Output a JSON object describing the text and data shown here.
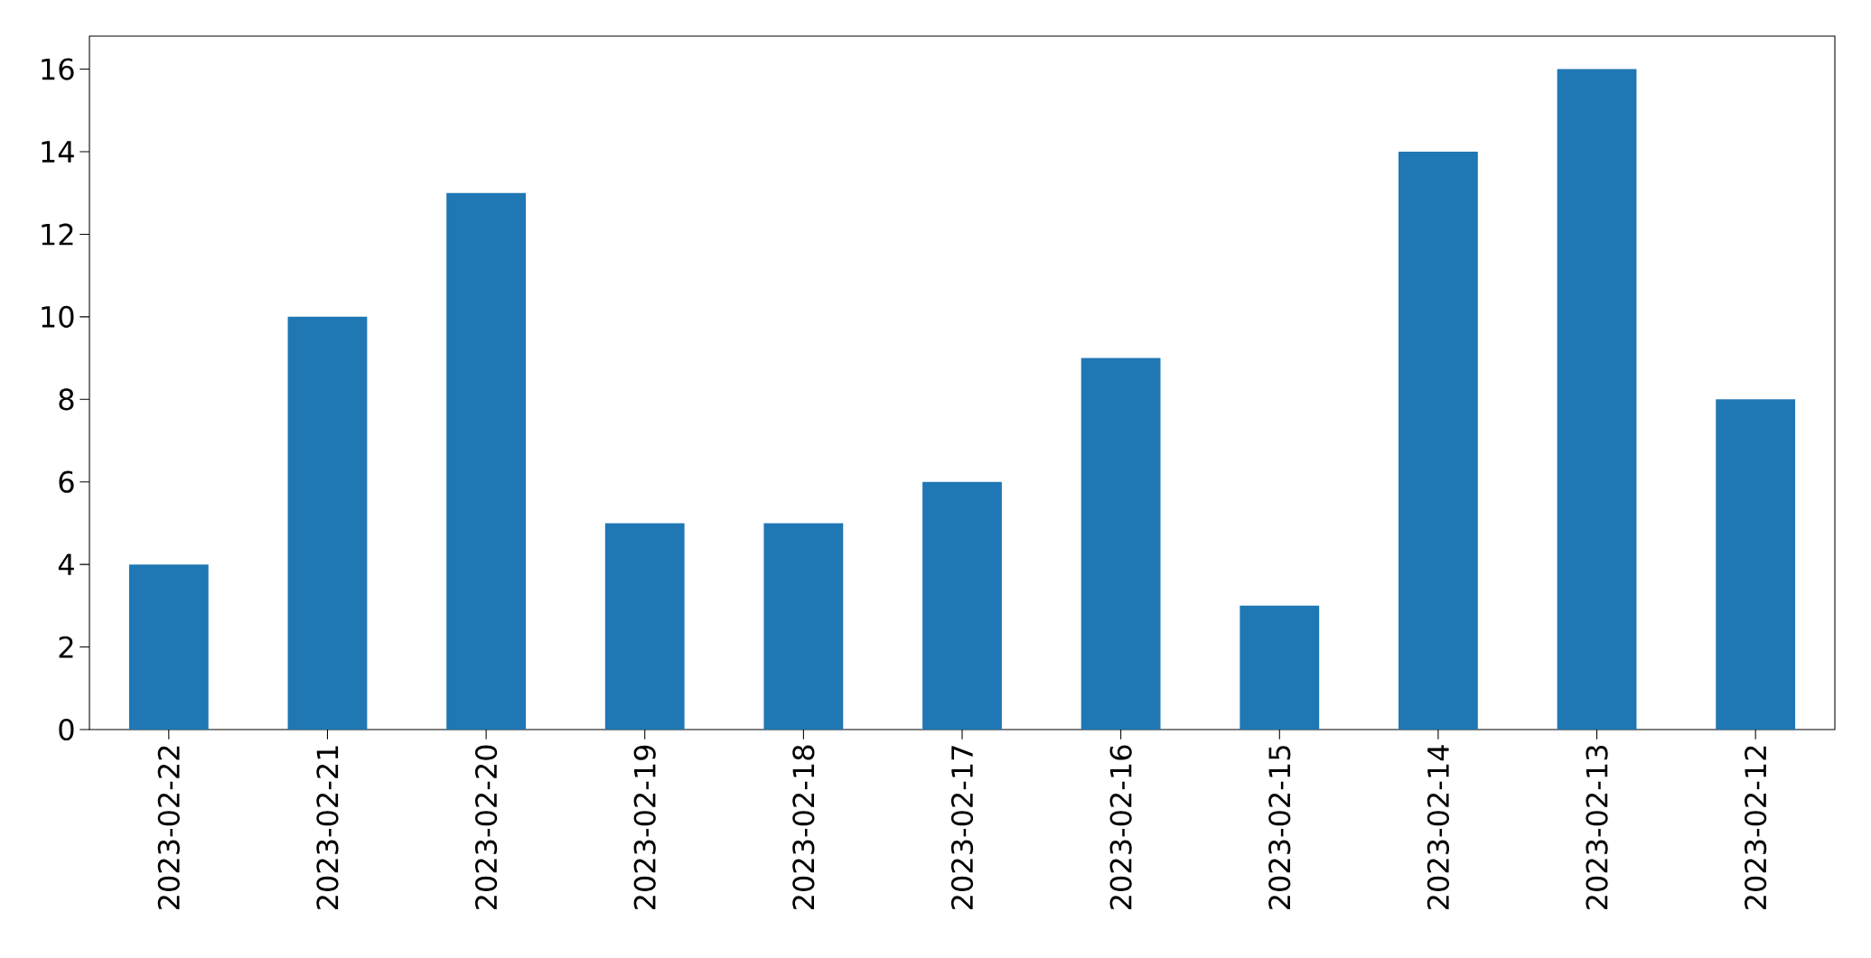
{
  "chart_data": {
    "type": "bar",
    "categories": [
      "2023-02-22",
      "2023-02-21",
      "2023-02-20",
      "2023-02-19",
      "2023-02-18",
      "2023-02-17",
      "2023-02-16",
      "2023-02-15",
      "2023-02-14",
      "2023-02-13",
      "2023-02-12"
    ],
    "values": [
      4,
      10,
      13,
      5,
      5,
      6,
      9,
      3,
      14,
      16,
      8
    ],
    "color": "#1f77b4",
    "ylim": [
      0,
      16.8
    ],
    "yticks": [
      0,
      2,
      4,
      6,
      8,
      10,
      12,
      14,
      16
    ]
  }
}
